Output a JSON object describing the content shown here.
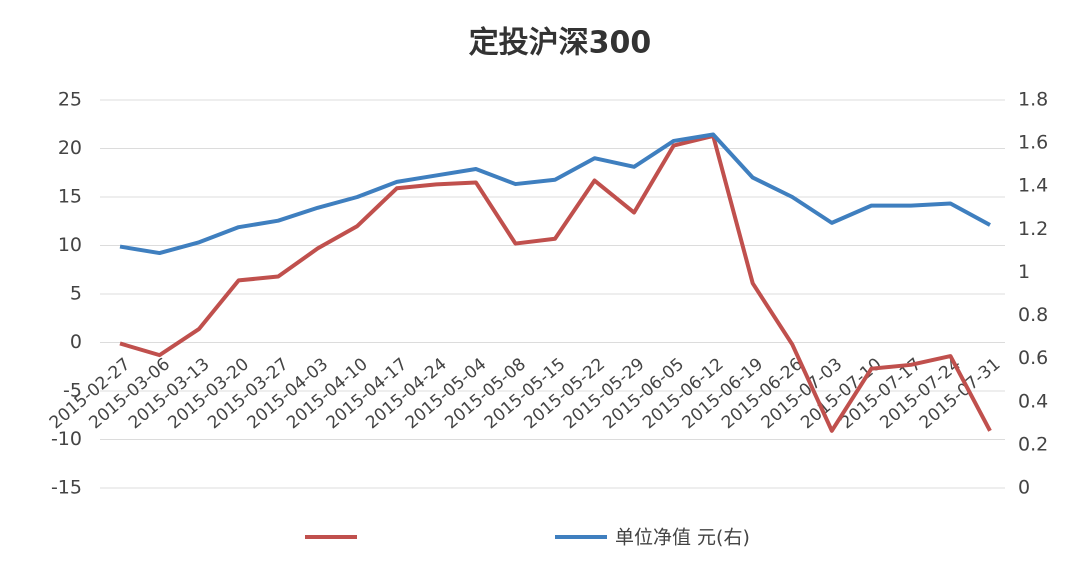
{
  "chart_data": {
    "type": "line",
    "title": "定投沪深300",
    "categories": [
      "2015-02-27",
      "2015-03-06",
      "2015-03-13",
      "2015-03-20",
      "2015-03-27",
      "2015-04-03",
      "2015-04-10",
      "2015-04-17",
      "2015-04-24",
      "2015-05-04",
      "2015-05-08",
      "2015-05-15",
      "2015-05-22",
      "2015-05-29",
      "2015-06-05",
      "2015-06-12",
      "2015-06-19",
      "2015-06-26",
      "2015-07-03",
      "2015-07-10",
      "2015-07-17",
      "2015-07-24",
      "2015-07-31"
    ],
    "series": [
      {
        "color": "#c0504d",
        "values": [
          -0.1,
          -1.3,
          1.4,
          6.4,
          6.8,
          9.7,
          12.0,
          15.9,
          16.3,
          16.5,
          10.2,
          10.7,
          16.7,
          13.4,
          20.3,
          21.3,
          6.1,
          -0.2,
          -9.1,
          -2.7,
          -2.3,
          -1.4,
          -9.1
        ]
      },
      {
        "name": "单位净值 元(右)",
        "color": "#3f7fbf",
        "axis": "y2",
        "values": [
          1.12,
          1.09,
          1.14,
          1.21,
          1.24,
          1.3,
          1.35,
          1.42,
          1.45,
          1.48,
          1.41,
          1.43,
          1.53,
          1.49,
          1.61,
          1.64,
          1.44,
          1.35,
          1.23,
          1.31,
          1.31,
          1.32,
          1.22
        ]
      }
    ],
    "ylim": [
      -15,
      25
    ],
    "yticks": [
      -15,
      -10,
      -5,
      0,
      5,
      10,
      15,
      20,
      25
    ],
    "y2lim": [
      0,
      1.8
    ],
    "y2ticks": [
      0,
      0.2,
      0.4,
      0.6,
      0.8,
      1,
      1.2,
      1.4,
      1.6,
      1.8
    ],
    "grid": true
  }
}
